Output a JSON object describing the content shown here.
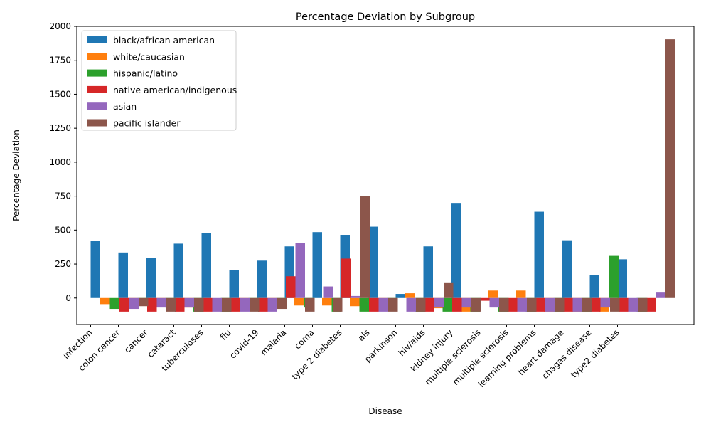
{
  "chart_data": {
    "type": "bar",
    "title": "Percentage Deviation by Subgroup",
    "xlabel": "Disease",
    "ylabel": "Percentage Deviation",
    "ylim": [
      -195,
      2000
    ],
    "yticks": [
      0,
      250,
      500,
      750,
      1000,
      1250,
      1500,
      1750,
      2000
    ],
    "legend_position": "top-left",
    "categories": [
      "infection",
      "colon cancer",
      "cancer",
      "cataract",
      "tuberculoses",
      "flu",
      "covid-19",
      "malaria",
      "coma",
      "type 2 diabetes",
      "als",
      "parkinson",
      "hiv/aids",
      "kidney injury",
      "multiple sclerosis",
      "multiple sclerosis",
      "learning problems",
      "heart damage",
      "chagas disease",
      "type2 diabetes"
    ],
    "series": [
      {
        "name": "black/african american",
        "color": "#1f77b4",
        "values": [
          420,
          335,
          295,
          400,
          480,
          205,
          275,
          380,
          485,
          465,
          525,
          30,
          380,
          700,
          0,
          0,
          635,
          425,
          170,
          285
        ]
      },
      {
        "name": "white/caucasian",
        "color": "#ff7f0e",
        "values": [
          -45,
          -40,
          -50,
          -70,
          0,
          -35,
          -35,
          -55,
          -55,
          -60,
          -55,
          35,
          -75,
          -100,
          55,
          55,
          -100,
          -100,
          -100,
          0
        ]
      },
      {
        "name": "hispanic/latino",
        "color": "#2ca02c",
        "values": [
          -80,
          -50,
          -70,
          -100,
          -100,
          -80,
          -70,
          -70,
          -100,
          -100,
          -80,
          -100,
          -100,
          -100,
          -100,
          -100,
          -100,
          -100,
          310,
          -100
        ]
      },
      {
        "name": "native american/indigenous",
        "color": "#d62728",
        "values": [
          -100,
          -100,
          -100,
          -100,
          -100,
          -100,
          160,
          0,
          290,
          -100,
          0,
          -100,
          -100,
          -20,
          -100,
          -100,
          -100,
          -100,
          -100,
          -100
        ]
      },
      {
        "name": "asian",
        "color": "#9467bd",
        "values": [
          -80,
          -70,
          -70,
          -100,
          -100,
          -100,
          405,
          85,
          15,
          -100,
          -100,
          -70,
          -70,
          -70,
          -100,
          -100,
          -100,
          -70,
          -100,
          40
        ]
      },
      {
        "name": "pacific islander",
        "color": "#8c564b",
        "values": [
          -60,
          -100,
          -100,
          -100,
          -100,
          -80,
          -100,
          -100,
          750,
          -100,
          -100,
          115,
          -100,
          -100,
          -100,
          -100,
          -100,
          -100,
          -100,
          1905
        ]
      }
    ]
  }
}
